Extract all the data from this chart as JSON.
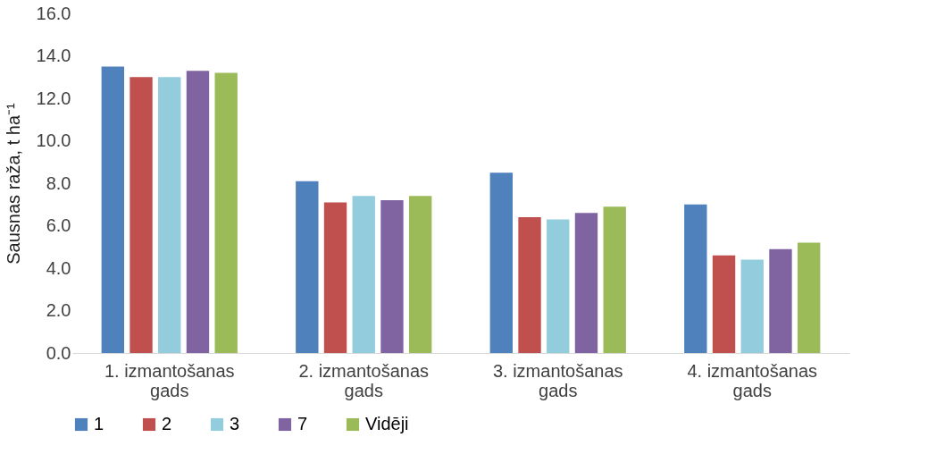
{
  "chart_data": {
    "type": "bar",
    "ylabel": "Sausnas raža, t ha⁻¹",
    "categories": [
      "1. izmantošanas gads",
      "2. izmantošanas gads",
      "3. izmantošanas gads",
      "4. izmantošanas gads"
    ],
    "series": [
      {
        "name": "1",
        "color": "#4f81bd",
        "values": [
          13.5,
          8.1,
          8.5,
          7.0
        ]
      },
      {
        "name": "2",
        "color": "#c0504d",
        "values": [
          13.0,
          7.1,
          6.4,
          4.6
        ]
      },
      {
        "name": "3",
        "color": "#93cddd",
        "values": [
          13.0,
          7.4,
          6.3,
          4.4
        ]
      },
      {
        "name": "7",
        "color": "#8064a2",
        "values": [
          13.3,
          7.2,
          6.6,
          4.9
        ]
      },
      {
        "name": "Vidēji",
        "color": "#9bbb59",
        "values": [
          13.2,
          7.4,
          6.9,
          5.2
        ]
      }
    ],
    "ylim": [
      0,
      16
    ],
    "yticks": [
      {
        "value": 0,
        "label": "0.0"
      },
      {
        "value": 2,
        "label": "2.0"
      },
      {
        "value": 4,
        "label": "4.0"
      },
      {
        "value": 6,
        "label": "6.0"
      },
      {
        "value": 8,
        "label": "8.0"
      },
      {
        "value": 10,
        "label": "10.0"
      },
      {
        "value": 12,
        "label": "12.0"
      },
      {
        "value": 14,
        "label": "14.0"
      },
      {
        "value": 16,
        "label": "16.0"
      }
    ],
    "grid": false,
    "legend": "bottom"
  }
}
